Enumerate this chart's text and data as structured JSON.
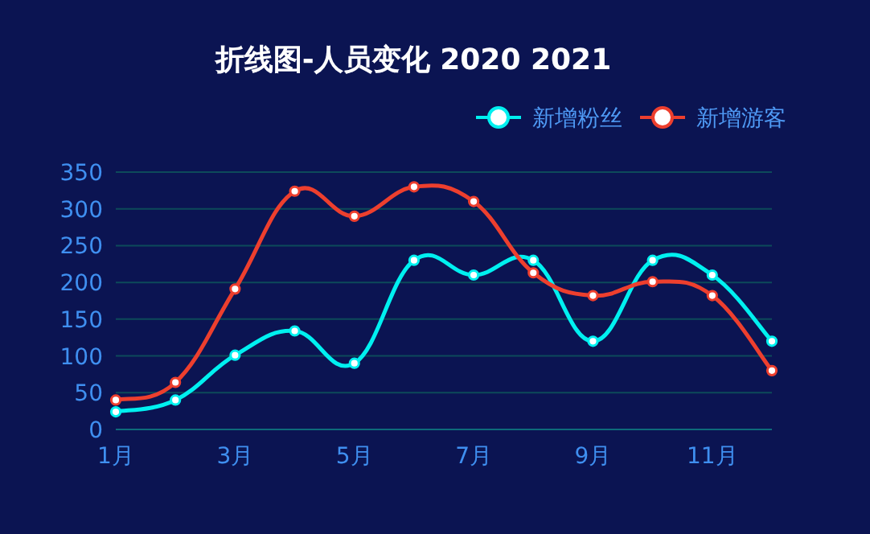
{
  "chart_data": {
    "type": "line",
    "title": "折线图-人员变化  2020   2021",
    "categories": [
      "1月",
      null,
      "3月",
      null,
      "5月",
      null,
      "7月",
      null,
      "9月",
      null,
      "11月",
      null
    ],
    "series": [
      {
        "name": "新增粉丝",
        "color": "#00f0f0",
        "values": [
          24,
          40,
          101,
          134,
          90,
          230,
          210,
          230,
          120,
          230,
          210,
          120
        ]
      },
      {
        "name": "新增游客",
        "color": "#ed3f2e",
        "values": [
          40,
          64,
          191,
          324,
          290,
          330,
          310,
          213,
          182,
          201,
          182,
          80
        ]
      }
    ],
    "ylim": [
      0,
      350
    ],
    "yticks": [
      0,
      50,
      100,
      150,
      200,
      250,
      300,
      350
    ],
    "grid": "y",
    "legend": "top right",
    "marker": "circle",
    "line_style": "solid"
  }
}
